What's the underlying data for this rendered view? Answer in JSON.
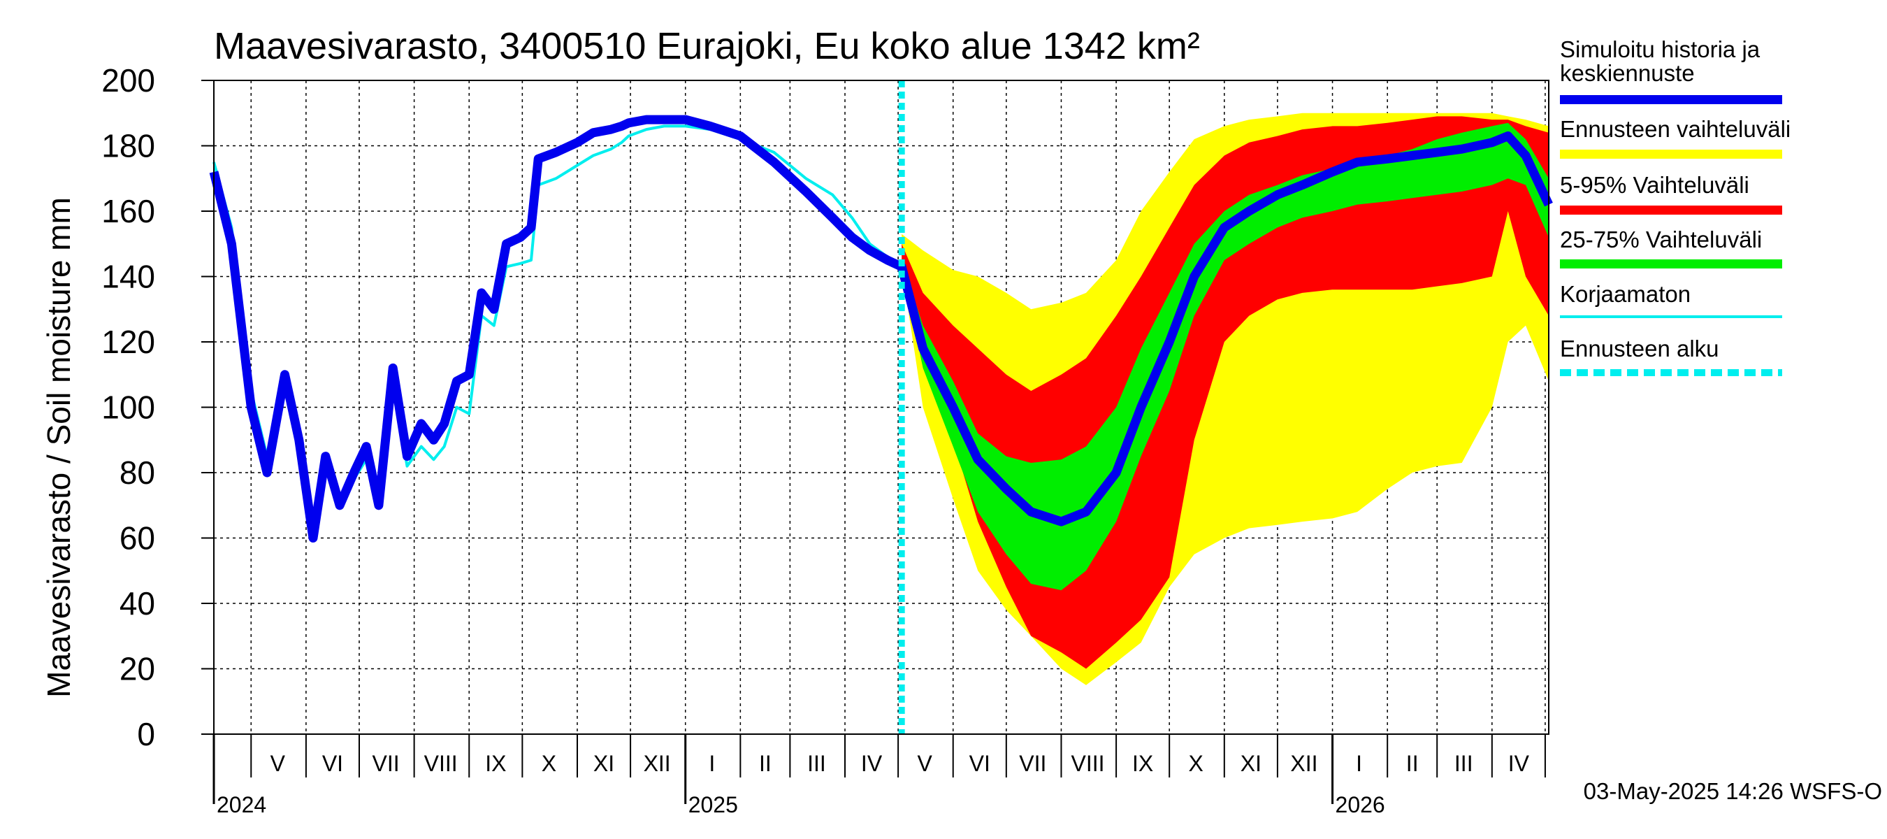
{
  "chart_data": {
    "type": "area",
    "title": "Maavesivarasto, 3400510 Eurajoki, Eu koko alue 1342 km²",
    "ylabel": "Maavesivarasto / Soil moisture   mm",
    "xlabel": "",
    "ylim": [
      0,
      200
    ],
    "y_ticks": [
      0,
      20,
      40,
      60,
      80,
      100,
      120,
      140,
      160,
      180,
      200
    ],
    "grid": true,
    "x_range": [
      "2024-04-10",
      "2026-05-03"
    ],
    "forecast_start": "2025-05-03",
    "month_labels": [
      {
        "label": "V",
        "date": "2024-05-16"
      },
      {
        "label": "VI",
        "date": "2024-06-16"
      },
      {
        "label": "VII",
        "date": "2024-07-16"
      },
      {
        "label": "VIII",
        "date": "2024-08-16"
      },
      {
        "label": "IX",
        "date": "2024-09-16"
      },
      {
        "label": "X",
        "date": "2024-10-16"
      },
      {
        "label": "XI",
        "date": "2024-11-16"
      },
      {
        "label": "XII",
        "date": "2024-12-16"
      },
      {
        "label": "I",
        "date": "2025-01-16"
      },
      {
        "label": "II",
        "date": "2025-02-15"
      },
      {
        "label": "III",
        "date": "2025-03-16"
      },
      {
        "label": "IV",
        "date": "2025-04-16"
      },
      {
        "label": "V",
        "date": "2025-05-16"
      },
      {
        "label": "VI",
        "date": "2025-06-16"
      },
      {
        "label": "VII",
        "date": "2025-07-16"
      },
      {
        "label": "VIII",
        "date": "2025-08-16"
      },
      {
        "label": "IX",
        "date": "2025-09-16"
      },
      {
        "label": "X",
        "date": "2025-10-16"
      },
      {
        "label": "XI",
        "date": "2025-11-16"
      },
      {
        "label": "XII",
        "date": "2025-12-16"
      },
      {
        "label": "I",
        "date": "2026-01-16"
      },
      {
        "label": "II",
        "date": "2026-02-15"
      },
      {
        "label": "III",
        "date": "2026-03-16"
      },
      {
        "label": "IV",
        "date": "2026-04-16"
      }
    ],
    "year_labels": [
      {
        "label": "2024",
        "date": "2024-04-10"
      },
      {
        "label": "2025",
        "date": "2025-01-01"
      },
      {
        "label": "2026",
        "date": "2026-01-01"
      }
    ],
    "legend": {
      "placement": "right",
      "items": [
        {
          "label": "Simuloitu historia ja keskiennuste",
          "color": "#0000ee",
          "style": "thick"
        },
        {
          "label": "Ennusteen vaihteluväli",
          "color": "#ffff00",
          "style": "thick"
        },
        {
          "label": "5-95% Vaihteluväli",
          "color": "#ff0000",
          "style": "thick"
        },
        {
          "label": "25-75% Vaihteluväli",
          "color": "#00ee00",
          "style": "thick"
        },
        {
          "label": "Korjaamaton",
          "color": "#00eeee",
          "style": "thin"
        },
        {
          "label": "Ennusteen alku",
          "color": "#00eeee",
          "style": "dashed"
        }
      ]
    },
    "series": [
      {
        "name": "Simuloitu historia ja keskiennuste",
        "color": "#0000ee",
        "x": [
          "2024-04-10",
          "2024-04-20",
          "2024-05-01",
          "2024-05-10",
          "2024-05-20",
          "2024-05-28",
          "2024-06-05",
          "2024-06-12",
          "2024-06-20",
          "2024-06-28",
          "2024-07-05",
          "2024-07-12",
          "2024-07-20",
          "2024-07-28",
          "2024-08-05",
          "2024-08-12",
          "2024-08-18",
          "2024-08-25",
          "2024-09-01",
          "2024-09-08",
          "2024-09-15",
          "2024-09-22",
          "2024-09-30",
          "2024-10-06",
          "2024-10-10",
          "2024-10-20",
          "2024-11-01",
          "2024-11-10",
          "2024-11-20",
          "2024-11-26",
          "2024-11-30",
          "2024-12-10",
          "2024-12-20",
          "2025-01-01",
          "2025-01-15",
          "2025-02-01",
          "2025-02-20",
          "2025-03-10",
          "2025-03-25",
          "2025-04-05",
          "2025-04-15",
          "2025-04-25",
          "2025-05-03",
          "2025-05-15",
          "2025-06-01",
          "2025-06-15",
          "2025-07-01",
          "2025-07-15",
          "2025-08-01",
          "2025-08-15",
          "2025-09-01",
          "2025-09-15",
          "2025-10-01",
          "2025-10-15",
          "2025-11-01",
          "2025-11-15",
          "2025-12-01",
          "2025-12-15",
          "2026-01-01",
          "2026-01-15",
          "2026-02-01",
          "2026-02-15",
          "2026-03-01",
          "2026-03-15",
          "2026-04-01",
          "2026-04-10",
          "2026-04-20",
          "2026-05-03"
        ],
        "y": [
          172,
          150,
          100,
          80,
          110,
          90,
          60,
          85,
          70,
          80,
          88,
          70,
          112,
          85,
          95,
          90,
          95,
          108,
          110,
          135,
          130,
          150,
          152,
          155,
          176,
          178,
          181,
          184,
          185,
          186,
          187,
          188,
          188,
          188,
          186,
          183,
          175,
          166,
          158,
          152,
          148,
          145,
          143,
          118,
          100,
          84,
          75,
          68,
          65,
          68,
          80,
          100,
          120,
          140,
          155,
          160,
          165,
          168,
          172,
          175,
          176,
          177,
          178,
          179,
          181,
          183,
          177,
          162
        ]
      },
      {
        "name": "Korjaamaton",
        "color": "#00eeee",
        "x": [
          "2024-04-10",
          "2024-04-20",
          "2024-05-01",
          "2024-05-10",
          "2024-05-20",
          "2024-05-28",
          "2024-06-05",
          "2024-06-12",
          "2024-06-20",
          "2024-06-28",
          "2024-07-05",
          "2024-07-12",
          "2024-07-20",
          "2024-07-28",
          "2024-08-05",
          "2024-08-12",
          "2024-08-18",
          "2024-08-25",
          "2024-09-01",
          "2024-09-08",
          "2024-09-15",
          "2024-09-22",
          "2024-09-30",
          "2024-10-06",
          "2024-10-10",
          "2024-10-20",
          "2024-11-01",
          "2024-11-10",
          "2024-11-20",
          "2024-11-26",
          "2024-11-30",
          "2024-12-10",
          "2024-12-20",
          "2025-01-01",
          "2025-01-15",
          "2025-02-01",
          "2025-02-20",
          "2025-03-10",
          "2025-03-25",
          "2025-04-05",
          "2025-04-15",
          "2025-04-25",
          "2025-05-03"
        ],
        "y": [
          175,
          155,
          105,
          85,
          108,
          88,
          65,
          83,
          72,
          78,
          84,
          72,
          108,
          82,
          88,
          84,
          88,
          100,
          98,
          128,
          125,
          143,
          144,
          145,
          168,
          170,
          174,
          177,
          179,
          181,
          183,
          185,
          186,
          186,
          185,
          182,
          178,
          170,
          165,
          158,
          150,
          146,
          143
        ]
      }
    ],
    "bands": [
      {
        "name": "Ennusteen vaihteluväli",
        "color": "#ffff00",
        "x": [
          "2025-05-03",
          "2025-05-15",
          "2025-06-01",
          "2025-06-15",
          "2025-07-01",
          "2025-07-15",
          "2025-08-01",
          "2025-08-15",
          "2025-09-01",
          "2025-09-15",
          "2025-10-01",
          "2025-10-15",
          "2025-11-01",
          "2025-11-15",
          "2025-12-01",
          "2025-12-15",
          "2026-01-01",
          "2026-01-15",
          "2026-02-01",
          "2026-02-15",
          "2026-03-01",
          "2026-03-15",
          "2026-04-01",
          "2026-04-10",
          "2026-04-20",
          "2026-05-03"
        ],
        "lower": [
          143,
          100,
          72,
          50,
          38,
          30,
          20,
          15,
          22,
          28,
          45,
          55,
          60,
          63,
          64,
          65,
          66,
          68,
          75,
          80,
          82,
          83,
          100,
          120,
          125,
          108
        ],
        "upper": [
          153,
          148,
          142,
          140,
          135,
          130,
          132,
          135,
          145,
          160,
          172,
          182,
          186,
          188,
          189,
          190,
          190,
          190,
          190,
          190,
          190,
          190,
          190,
          189,
          188,
          186
        ]
      },
      {
        "name": "5-95% Vaihteluväli",
        "color": "#ff0000",
        "x": [
          "2025-05-03",
          "2025-05-15",
          "2025-06-01",
          "2025-06-15",
          "2025-07-01",
          "2025-07-15",
          "2025-08-01",
          "2025-08-15",
          "2025-09-01",
          "2025-09-15",
          "2025-10-01",
          "2025-10-15",
          "2025-11-01",
          "2025-11-15",
          "2025-12-01",
          "2025-12-15",
          "2026-01-01",
          "2026-01-15",
          "2026-02-01",
          "2026-02-15",
          "2026-03-01",
          "2026-03-15",
          "2026-04-01",
          "2026-04-10",
          "2026-04-20",
          "2026-05-03"
        ],
        "lower": [
          143,
          115,
          90,
          65,
          45,
          30,
          25,
          20,
          28,
          35,
          48,
          90,
          120,
          128,
          133,
          135,
          136,
          136,
          136,
          136,
          137,
          138,
          140,
          160,
          140,
          128
        ],
        "upper": [
          150,
          135,
          125,
          118,
          110,
          105,
          110,
          115,
          128,
          140,
          155,
          168,
          177,
          181,
          183,
          185,
          186,
          186,
          187,
          188,
          189,
          189,
          188,
          188,
          186,
          184
        ]
      },
      {
        "name": "25-75% Vaihteluväli",
        "color": "#00ee00",
        "x": [
          "2025-05-03",
          "2025-05-15",
          "2025-06-01",
          "2025-06-15",
          "2025-07-01",
          "2025-07-15",
          "2025-08-01",
          "2025-08-15",
          "2025-09-01",
          "2025-09-15",
          "2025-10-01",
          "2025-10-15",
          "2025-11-01",
          "2025-11-15",
          "2025-12-01",
          "2025-12-15",
          "2026-01-01",
          "2026-01-15",
          "2026-02-01",
          "2026-02-15",
          "2026-03-01",
          "2026-03-15",
          "2026-04-01",
          "2026-04-10",
          "2026-04-20",
          "2026-05-03"
        ],
        "lower": [
          143,
          112,
          88,
          68,
          55,
          46,
          44,
          50,
          65,
          85,
          105,
          128,
          145,
          150,
          155,
          158,
          160,
          162,
          163,
          164,
          165,
          166,
          168,
          170,
          168,
          152
        ],
        "upper": [
          145,
          125,
          108,
          92,
          85,
          83,
          84,
          88,
          100,
          118,
          135,
          150,
          160,
          165,
          168,
          171,
          173,
          175,
          177,
          179,
          182,
          184,
          186,
          187,
          182,
          170
        ]
      }
    ]
  },
  "legend_lines": [
    "Simuloitu historia ja",
    "keskiennuste"
  ],
  "timestamp": "03-May-2025 14:26 WSFS-O"
}
